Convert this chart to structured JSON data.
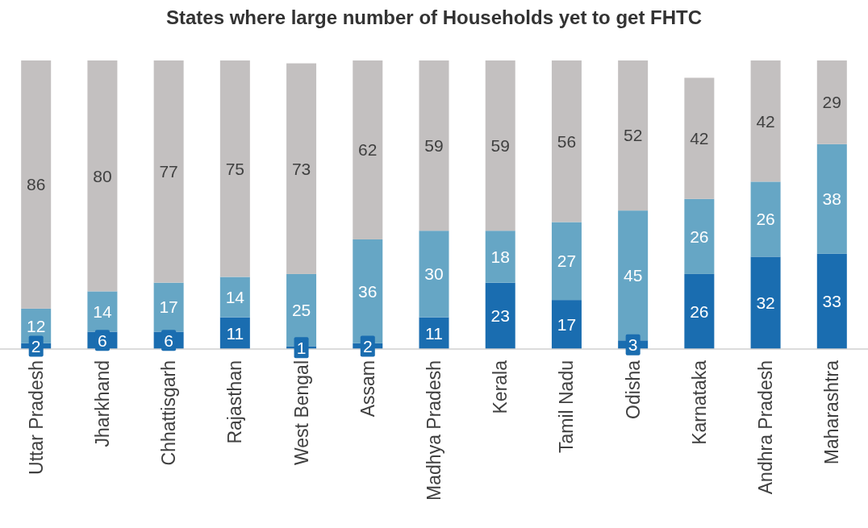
{
  "chart_data": {
    "type": "bar",
    "title": "States where large number of Households yet to get FHTC",
    "categories": [
      "Uttar Pradesh",
      "Jharkhand",
      "Chhattisgarh",
      "Rajasthan",
      "West Bengal",
      "Assam",
      "Madhya Pradesh",
      "Kerala",
      "Tamil Nadu",
      "Odisha",
      "Karnataka",
      "Andhra Pradesh",
      "Maharashtra"
    ],
    "series": [
      {
        "color": "#1a6db0",
        "values": [
          2,
          6,
          6,
          11,
          1,
          2,
          11,
          23,
          17,
          3,
          26,
          32,
          33
        ]
      },
      {
        "color": "#66a6c5",
        "values": [
          12,
          14,
          17,
          14,
          25,
          36,
          30,
          18,
          27,
          45,
          26,
          26,
          38
        ]
      },
      {
        "color": "#c3c0c0",
        "values": [
          86,
          80,
          77,
          75,
          73,
          62,
          59,
          59,
          56,
          52,
          42,
          42,
          29
        ]
      }
    ],
    "stacked": true,
    "ylim": [
      0,
      100
    ],
    "tick_labels": "x",
    "data_labels": true,
    "grid": false,
    "legend": false
  }
}
